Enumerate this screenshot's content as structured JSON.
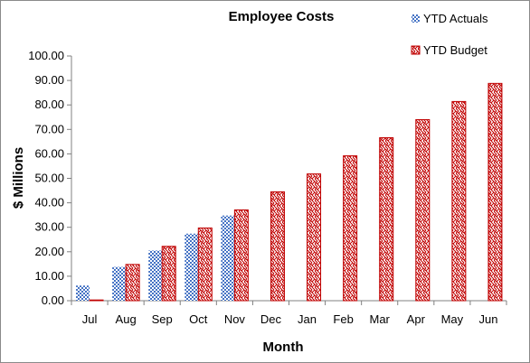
{
  "chart_data": {
    "type": "bar",
    "title": "Employee Costs",
    "xlabel": "Month",
    "ylabel": "$ Millions",
    "ylim": [
      0,
      100
    ],
    "ytick_step": 10,
    "ytick_format": "0.00",
    "grid": false,
    "legend_position": "top-right",
    "categories": [
      "Jul",
      "Aug",
      "Sep",
      "Oct",
      "Nov",
      "Dec",
      "Jan",
      "Feb",
      "Mar",
      "Apr",
      "May",
      "Jun"
    ],
    "series": [
      {
        "name": "YTD Actuals",
        "color": "#4472c4",
        "pattern": "checker",
        "values": [
          6.2,
          13.8,
          20.5,
          27.4,
          34.8,
          null,
          null,
          null,
          null,
          null,
          null,
          null
        ]
      },
      {
        "name": "YTD Budget",
        "color": "#c00000",
        "pattern": "weave",
        "values": [
          0.3,
          14.8,
          22.2,
          29.7,
          37.1,
          44.5,
          51.8,
          59.2,
          66.6,
          74.0,
          81.4,
          88.8
        ]
      }
    ]
  }
}
